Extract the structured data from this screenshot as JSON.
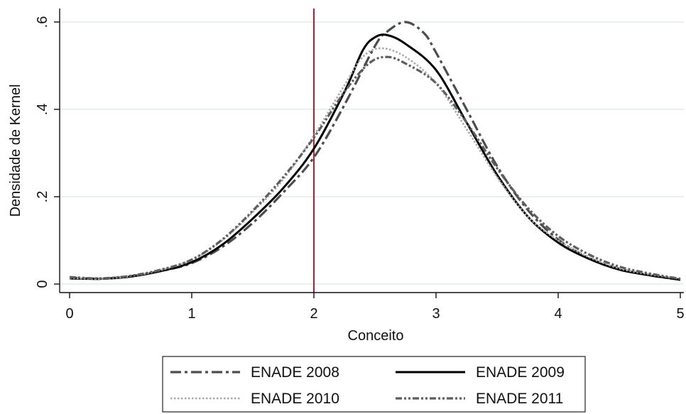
{
  "chart_data": {
    "type": "line",
    "title": "",
    "xlabel": "Conceito",
    "ylabel": "Densidade de Kernel",
    "xlim": [
      0,
      5
    ],
    "ylim": [
      0,
      0.6
    ],
    "xticks": [
      0,
      1,
      2,
      3,
      4,
      5
    ],
    "xtick_labels": [
      "0",
      "1",
      "2",
      "3",
      "4",
      "5"
    ],
    "yticks": [
      0,
      0.2,
      0.4,
      0.6
    ],
    "ytick_labels": [
      "0",
      ".2",
      ".4",
      ".6"
    ],
    "grid": "horizontal",
    "reference_line": {
      "x": 2,
      "color": "#c0182a"
    },
    "legend_placement": "bottom",
    "series": [
      {
        "name": "ENADE 2008",
        "color": "#4d4d4d",
        "style": "dash-dot",
        "x": [
          0,
          0.25,
          0.5,
          0.75,
          1.0,
          1.25,
          1.5,
          1.75,
          2.0,
          2.25,
          2.5,
          2.6,
          2.75,
          2.9,
          3.0,
          3.25,
          3.5,
          3.75,
          4.0,
          4.25,
          4.5,
          4.75,
          5.0
        ],
        "y": [
          0.015,
          0.012,
          0.018,
          0.03,
          0.048,
          0.085,
          0.14,
          0.21,
          0.29,
          0.41,
          0.545,
          0.578,
          0.6,
          0.575,
          0.53,
          0.4,
          0.27,
          0.17,
          0.102,
          0.06,
          0.035,
          0.02,
          0.01
        ]
      },
      {
        "name": "ENADE 2009",
        "color": "#000000",
        "style": "solid",
        "x": [
          0,
          0.25,
          0.5,
          0.75,
          1.0,
          1.25,
          1.5,
          1.75,
          2.0,
          2.25,
          2.4,
          2.5,
          2.6,
          2.75,
          3.0,
          3.25,
          3.5,
          3.75,
          4.0,
          4.25,
          4.5,
          4.75,
          5.0
        ],
        "y": [
          0.013,
          0.012,
          0.017,
          0.03,
          0.05,
          0.09,
          0.15,
          0.22,
          0.31,
          0.44,
          0.535,
          0.565,
          0.57,
          0.55,
          0.49,
          0.37,
          0.25,
          0.155,
          0.095,
          0.058,
          0.033,
          0.02,
          0.01
        ]
      },
      {
        "name": "ENADE 2010",
        "color": "#a8a8a8",
        "style": "dotted",
        "x": [
          0,
          0.25,
          0.5,
          0.75,
          1.0,
          1.25,
          1.5,
          1.75,
          2.0,
          2.25,
          2.4,
          2.55,
          2.75,
          3.0,
          3.25,
          3.5,
          3.75,
          4.0,
          4.25,
          4.5,
          4.75,
          5.0
        ],
        "y": [
          0.014,
          0.012,
          0.018,
          0.032,
          0.055,
          0.1,
          0.165,
          0.24,
          0.34,
          0.455,
          0.52,
          0.54,
          0.52,
          0.46,
          0.355,
          0.245,
          0.155,
          0.1,
          0.062,
          0.036,
          0.022,
          0.012
        ]
      },
      {
        "name": "ENADE 2011",
        "color": "#5e5e5e",
        "style": "dash-dot-dot",
        "x": [
          0,
          0.25,
          0.5,
          0.75,
          1.0,
          1.25,
          1.5,
          1.75,
          2.0,
          2.25,
          2.45,
          2.6,
          2.75,
          3.0,
          3.25,
          3.5,
          3.75,
          4.0,
          4.25,
          4.5,
          4.75,
          5.0
        ],
        "y": [
          0.016,
          0.013,
          0.019,
          0.033,
          0.056,
          0.102,
          0.168,
          0.245,
          0.335,
          0.44,
          0.505,
          0.52,
          0.505,
          0.46,
          0.37,
          0.265,
          0.175,
          0.11,
          0.068,
          0.04,
          0.024,
          0.012
        ]
      }
    ]
  }
}
